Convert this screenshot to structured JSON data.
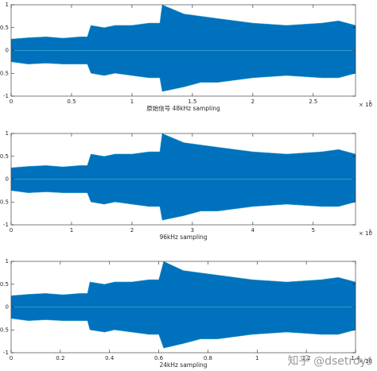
{
  "chart_data": [
    {
      "type": "range-area",
      "xlabel": "原始信号 48kHz sampling",
      "color": "#0072bd",
      "x": [
        0,
        0.14,
        0.29,
        0.43,
        0.57,
        0.63,
        0.66,
        0.77,
        0.86,
        1.0,
        1.14,
        1.23,
        1.25,
        1.43,
        1.57,
        1.71,
        2.0,
        2.28,
        2.57,
        2.71,
        2.85
      ],
      "high": [
        0.25,
        0.28,
        0.3,
        0.27,
        0.3,
        0.3,
        0.55,
        0.5,
        0.55,
        0.55,
        0.6,
        0.6,
        1.0,
        0.8,
        0.75,
        0.7,
        0.6,
        0.55,
        0.6,
        0.65,
        0.55
      ],
      "low": [
        -0.25,
        -0.3,
        -0.28,
        -0.3,
        -0.3,
        -0.3,
        -0.5,
        -0.55,
        -0.5,
        -0.55,
        -0.6,
        -0.6,
        -0.9,
        -0.8,
        -0.7,
        -0.7,
        -0.6,
        -0.55,
        -0.6,
        -0.6,
        -0.5
      ],
      "xlim": [
        0,
        2.85
      ],
      "xticks": [
        0,
        0.5,
        1,
        1.5,
        2,
        2.5
      ],
      "x_exponent_base": "× 10",
      "x_exponent": "5",
      "ylim": [
        -1,
        1
      ],
      "yticks": [
        -1,
        -0.5,
        0,
        0.5,
        1
      ]
    },
    {
      "type": "range-area",
      "xlabel": "96kHz sampling",
      "color": "#0072bd",
      "x": [
        0,
        0.28,
        0.58,
        0.86,
        1.14,
        1.26,
        1.32,
        1.54,
        1.72,
        2.0,
        2.28,
        2.46,
        2.5,
        2.86,
        3.14,
        3.42,
        4.0,
        4.56,
        5.14,
        5.42,
        5.7
      ],
      "high": [
        0.25,
        0.28,
        0.3,
        0.27,
        0.3,
        0.3,
        0.55,
        0.5,
        0.55,
        0.55,
        0.6,
        0.6,
        1.0,
        0.8,
        0.75,
        0.7,
        0.6,
        0.55,
        0.6,
        0.65,
        0.55
      ],
      "low": [
        -0.25,
        -0.3,
        -0.28,
        -0.3,
        -0.3,
        -0.3,
        -0.5,
        -0.55,
        -0.5,
        -0.55,
        -0.6,
        -0.6,
        -0.9,
        -0.8,
        -0.7,
        -0.7,
        -0.6,
        -0.55,
        -0.6,
        -0.6,
        -0.5
      ],
      "xlim": [
        0,
        5.7
      ],
      "xticks": [
        0,
        1,
        2,
        3,
        4,
        5
      ],
      "x_exponent_base": "× 10",
      "x_exponent": "5",
      "ylim": [
        -1,
        1
      ],
      "yticks": [
        -1,
        -0.5,
        0,
        0.5,
        1
      ]
    },
    {
      "type": "range-area",
      "xlabel": "24kHz sampling",
      "color": "#0072bd",
      "x": [
        0,
        0.07,
        0.14,
        0.21,
        0.28,
        0.31,
        0.32,
        0.38,
        0.42,
        0.49,
        0.56,
        0.6,
        0.62,
        0.7,
        0.77,
        0.84,
        0.98,
        1.12,
        1.26,
        1.33,
        1.4
      ],
      "high": [
        0.25,
        0.28,
        0.3,
        0.27,
        0.3,
        0.3,
        0.55,
        0.5,
        0.55,
        0.55,
        0.6,
        0.6,
        1.0,
        0.8,
        0.75,
        0.7,
        0.6,
        0.55,
        0.6,
        0.65,
        0.55
      ],
      "low": [
        -0.25,
        -0.3,
        -0.28,
        -0.3,
        -0.3,
        -0.3,
        -0.5,
        -0.55,
        -0.5,
        -0.55,
        -0.6,
        -0.6,
        -0.9,
        -0.8,
        -0.7,
        -0.7,
        -0.6,
        -0.55,
        -0.6,
        -0.6,
        -0.5
      ],
      "xlim": [
        0,
        1.4
      ],
      "xticks": [
        0,
        0.2,
        0.4,
        0.6,
        0.8,
        1,
        1.2,
        1.4
      ],
      "x_exponent_base": "× 10",
      "x_exponent": "5",
      "ylim": [
        -1,
        1
      ],
      "yticks": [
        -1,
        -0.5,
        0,
        0.5,
        1
      ]
    }
  ],
  "watermark": "知乎 @dsetroys"
}
